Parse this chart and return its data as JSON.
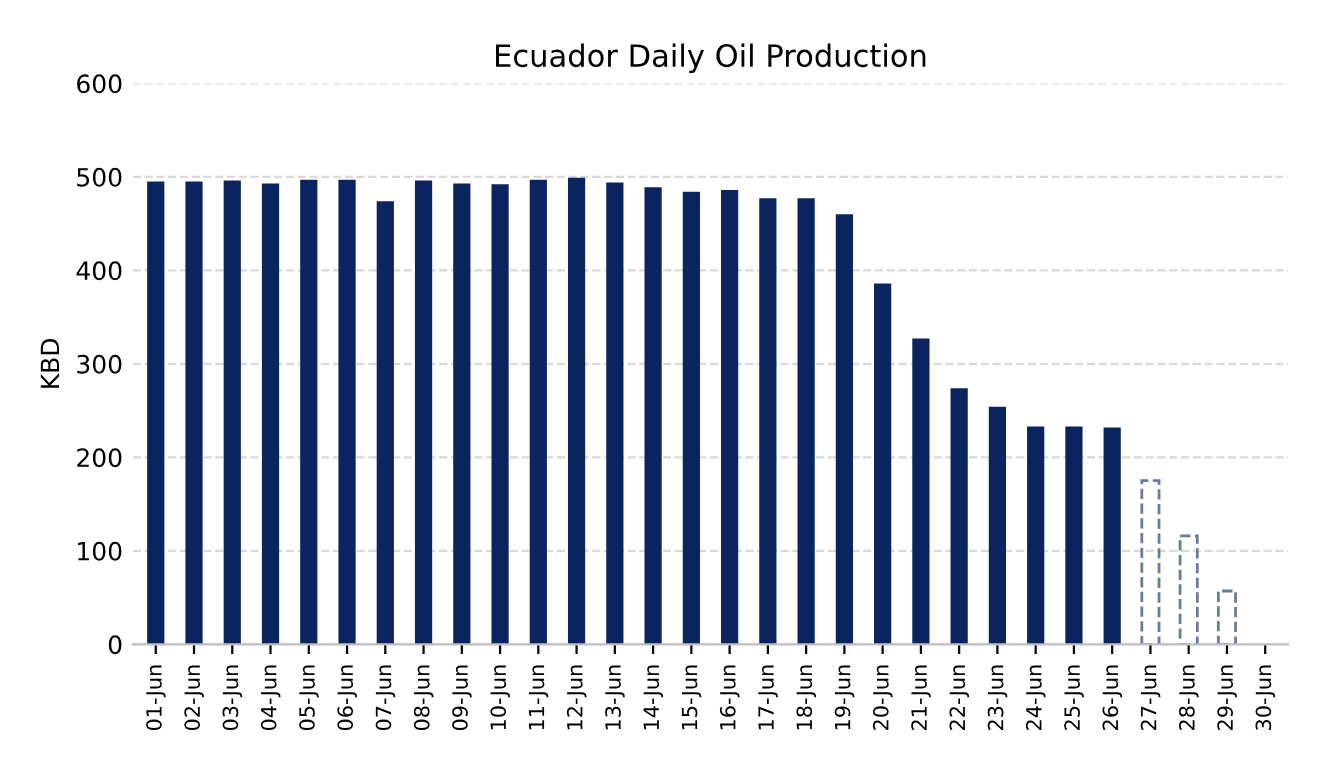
{
  "chart_data": {
    "type": "bar",
    "title": "Ecuador Daily Oil Production",
    "ylabel": "KBD",
    "categories": [
      "01-Jun",
      "02-Jun",
      "03-Jun",
      "04-Jun",
      "05-Jun",
      "06-Jun",
      "07-Jun",
      "08-Jun",
      "09-Jun",
      "10-Jun",
      "11-Jun",
      "12-Jun",
      "13-Jun",
      "14-Jun",
      "15-Jun",
      "16-Jun",
      "17-Jun",
      "18-Jun",
      "19-Jun",
      "20-Jun",
      "21-Jun",
      "22-Jun",
      "23-Jun",
      "24-Jun",
      "25-Jun",
      "26-Jun",
      "27-Jun",
      "28-Jun",
      "29-Jun",
      "30-Jun"
    ],
    "series": [
      {
        "color": "#0b2460",
        "line_style": "solid",
        "values": [
          495,
          495,
          496,
          493,
          497,
          497,
          474,
          496,
          493,
          492,
          497,
          499,
          494,
          489,
          484,
          486,
          477,
          477,
          460,
          386,
          327,
          274,
          254,
          233,
          233,
          232,
          null,
          null,
          null,
          null
        ]
      },
      {
        "color": "#6b7a99",
        "line_style": "dashed",
        "values": [
          null,
          null,
          null,
          null,
          null,
          null,
          null,
          null,
          null,
          null,
          null,
          null,
          null,
          null,
          null,
          null,
          null,
          null,
          null,
          null,
          null,
          null,
          null,
          null,
          null,
          null,
          175,
          116,
          57,
          null
        ]
      }
    ],
    "ylim": [
      0,
      600
    ],
    "yticks": [
      0,
      100,
      200,
      300,
      400,
      500,
      600
    ],
    "grid": "y",
    "legend": false
  }
}
